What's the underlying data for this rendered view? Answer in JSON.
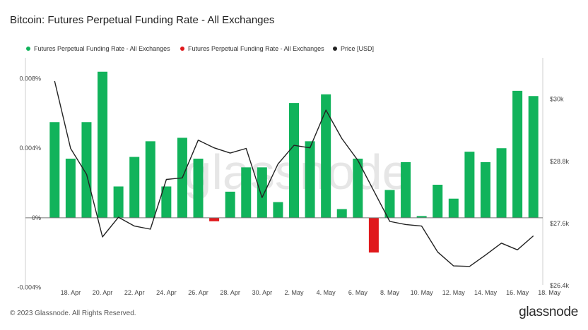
{
  "title": "Bitcoin: Futures Perpetual Funding Rate - All Exchanges",
  "footer": "© 2023 Glassnode. All Rights Reserved.",
  "brand": "glassnode",
  "watermark": "glassnode",
  "colors": {
    "positive": "#11b35b",
    "negative": "#e0191c",
    "price": "#222222",
    "axis": "#cfcfcf"
  },
  "chart_data": {
    "type": "bar",
    "legend": [
      {
        "label": "Futures Perpetual Funding Rate - All Exchanges",
        "color": "#11b35b"
      },
      {
        "label": "Futures Perpetual Funding Rate - All Exchanges",
        "color": "#e0191c"
      },
      {
        "label": "Price [USD]",
        "color": "#222222"
      }
    ],
    "legend_position": "top-left",
    "x_ticks": [
      "18. Apr",
      "20. Apr",
      "22. Apr",
      "24. Apr",
      "26. Apr",
      "28. Apr",
      "30. Apr",
      "2. May",
      "4. May",
      "6. May",
      "8. May",
      "10. May",
      "12. May",
      "14. May",
      "16. May",
      "18. May"
    ],
    "y_left": {
      "ticks": [
        "-0.004%",
        "0%",
        "0.004%",
        "0.008%"
      ],
      "lim": [
        -0.0039,
        0.0092
      ]
    },
    "y_right": {
      "ticks": [
        "$26.4k",
        "$27.6k",
        "$28.8k",
        "$30k"
      ],
      "lim": [
        26400,
        30800
      ]
    },
    "dates": [
      "17 Apr",
      "18 Apr",
      "19 Apr",
      "20 Apr",
      "21 Apr",
      "22 Apr",
      "23 Apr",
      "24 Apr",
      "25 Apr",
      "26 Apr",
      "27 Apr",
      "28 Apr",
      "29 Apr",
      "30 Apr",
      "1 May",
      "2 May",
      "3 May",
      "4 May",
      "5 May",
      "6 May",
      "7 May",
      "8 May",
      "9 May",
      "10 May",
      "11 May",
      "12 May",
      "13 May",
      "14 May",
      "15 May",
      "16 May",
      "17 May"
    ],
    "funding_rate": [
      0.0055,
      0.0034,
      0.0055,
      0.0084,
      0.0018,
      0.0035,
      0.0044,
      0.0018,
      0.0046,
      0.0034,
      -0.0002,
      0.0015,
      0.0029,
      0.0029,
      0.0009,
      0.0066,
      0.0044,
      0.0071,
      0.0005,
      0.0034,
      -0.002,
      0.0016,
      0.0032,
      0.0001,
      0.0019,
      0.0011,
      0.0038,
      0.0032,
      0.004,
      0.0073,
      0.007
    ],
    "price": [
      30350,
      29050,
      28550,
      27340,
      27720,
      27550,
      27490,
      28450,
      28480,
      29210,
      29060,
      28960,
      29050,
      28100,
      28750,
      29110,
      29060,
      29790,
      29240,
      28820,
      28230,
      27640,
      27580,
      27550,
      27050,
      26780,
      26770,
      26990,
      27220,
      27090,
      27360
    ],
    "grid": false
  }
}
